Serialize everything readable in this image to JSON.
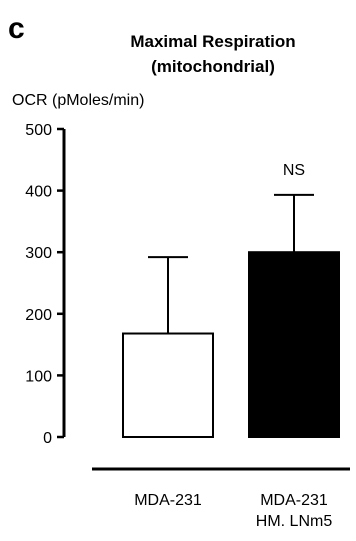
{
  "panel_label": "c",
  "chart_data": {
    "type": "bar",
    "title": [
      "Maximal Respiration",
      "(mitochondrial)"
    ],
    "ylabel": "OCR (pMoles/min)",
    "xlabel": "",
    "ylim": [
      0,
      500
    ],
    "yticks": [
      0,
      100,
      200,
      300,
      400,
      500
    ],
    "categories": [
      {
        "lines": [
          "MDA-231"
        ],
        "fill": "#ffffff"
      },
      {
        "lines": [
          "MDA-231",
          "HM. LNm5"
        ],
        "fill": "#000000"
      }
    ],
    "values": [
      168,
      300
    ],
    "error_upper": [
      292,
      393
    ],
    "annotations": [
      {
        "category_index": 1,
        "text": "NS"
      }
    ]
  }
}
